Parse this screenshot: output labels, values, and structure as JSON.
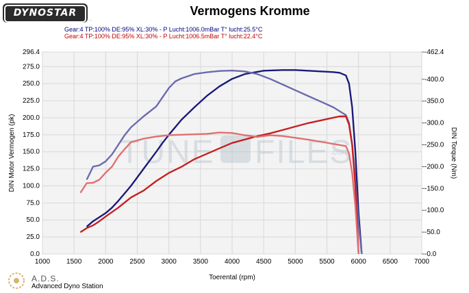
{
  "header": {
    "logo_text": "DYNOSTAR",
    "logo_sub": "...",
    "title": "Vermogens Kromme",
    "run1": "Gear:4 TP:100% DE:95% XL:30%   - P Lucht:1006.0mBar T° lucht:25.5°C",
    "run2": "Gear:4 TP:100% DE:95% XL:30%   - P Lucht:1006.5mBar T° lucht:22.4°C"
  },
  "footer": {
    "station_short": "A.D.S.",
    "station_full": "Advanced Dyno Station"
  },
  "watermark": {
    "text_left": "TUNE",
    "text_right": "FILES",
    "suffix": ".com"
  },
  "colors": {
    "run1_power": "#1a1a7a",
    "run1_torque": "#6a6ab0",
    "run2_power": "#c42020",
    "run2_torque": "#e07070",
    "grid": "#d8d8d8",
    "plot_bg": "#f3f3f3"
  },
  "chart_data": {
    "type": "line",
    "title": "Vermogens Kromme",
    "xlabel": "Toerental (rpm)",
    "ylabel": "DIN Motor Vermogen (pk)",
    "y2label": "DIN Torque (Nm)",
    "xlim": [
      1000,
      7000
    ],
    "ylim": [
      0,
      296.4
    ],
    "y2lim": [
      0,
      462.4
    ],
    "x_ticks": [
      "1000",
      "1500",
      "2000",
      "2500",
      "3000",
      "3500",
      "4000",
      "4500",
      "5000",
      "5500",
      "6000",
      "6500",
      "7000"
    ],
    "y_ticks": [
      "0.0",
      "25.0",
      "50.0",
      "75.0",
      "100.0",
      "125.0",
      "150.0",
      "175.0",
      "200.0",
      "225.0",
      "250.0",
      "275.0",
      "296.4"
    ],
    "y2_ticks": [
      "0.0",
      "50.0",
      "100.0",
      "150.0",
      "200.0",
      "250.0",
      "300.0",
      "350.0",
      "400.0",
      "462.4"
    ],
    "grid": true,
    "series": [
      {
        "axis": "y",
        "color_key": "run1_power",
        "x": [
          1700,
          1800,
          1900,
          2000,
          2100,
          2200,
          2400,
          2600,
          2800,
          2900,
          3000,
          3200,
          3400,
          3600,
          3800,
          4000,
          4200,
          4500,
          4800,
          5000,
          5200,
          5400,
          5600,
          5700,
          5800,
          5850,
          5900,
          5950,
          6000,
          6050
        ],
        "values": [
          40,
          48,
          54,
          60,
          68,
          78,
          100,
          125,
          150,
          163,
          175,
          197,
          215,
          232,
          246,
          257,
          264,
          269,
          270,
          270,
          269,
          268,
          267,
          266,
          262,
          250,
          215,
          150,
          60,
          0
        ]
      },
      {
        "axis": "y2",
        "color_key": "run1_torque",
        "x": [
          1700,
          1750,
          1800,
          1900,
          2000,
          2100,
          2200,
          2300,
          2400,
          2600,
          2800,
          3000,
          3100,
          3200,
          3400,
          3600,
          3800,
          4000,
          4200,
          4400,
          4600,
          4800,
          5000,
          5200,
          5400,
          5600,
          5800,
          5850,
          5900,
          5950,
          6000,
          6050
        ],
        "values": [
          170,
          185,
          200,
          203,
          212,
          228,
          250,
          272,
          290,
          315,
          338,
          380,
          395,
          402,
          412,
          416,
          419,
          420,
          418,
          412,
          401,
          388,
          375,
          362,
          349,
          336,
          318,
          300,
          250,
          170,
          70,
          0
        ]
      },
      {
        "axis": "y",
        "color_key": "run2_power",
        "x": [
          1600,
          1700,
          1800,
          1900,
          2000,
          2200,
          2400,
          2600,
          2800,
          3000,
          3200,
          3400,
          3600,
          3800,
          4000,
          4200,
          4400,
          4600,
          4800,
          5000,
          5200,
          5400,
          5600,
          5700,
          5800,
          5850,
          5900,
          5950,
          6000
        ],
        "values": [
          32,
          38,
          42,
          48,
          55,
          68,
          83,
          93,
          107,
          119,
          128,
          139,
          147,
          155,
          163,
          168,
          173,
          177,
          182,
          187,
          192,
          196,
          200,
          202,
          202,
          190,
          160,
          100,
          0
        ]
      },
      {
        "axis": "y2",
        "color_key": "run2_torque",
        "x": [
          1600,
          1700,
          1800,
          1900,
          2000,
          2100,
          2200,
          2300,
          2400,
          2600,
          2800,
          3000,
          3200,
          3400,
          3600,
          3800,
          4000,
          4200,
          4400,
          4600,
          4800,
          5000,
          5200,
          5400,
          5600,
          5800,
          5850,
          5900,
          5950,
          6000
        ],
        "values": [
          140,
          162,
          163,
          170,
          186,
          200,
          223,
          240,
          256,
          264,
          269,
          272,
          273,
          274,
          275,
          278,
          277,
          272,
          268,
          272,
          270,
          266,
          262,
          257,
          252,
          247,
          230,
          185,
          110,
          0
        ]
      }
    ]
  }
}
